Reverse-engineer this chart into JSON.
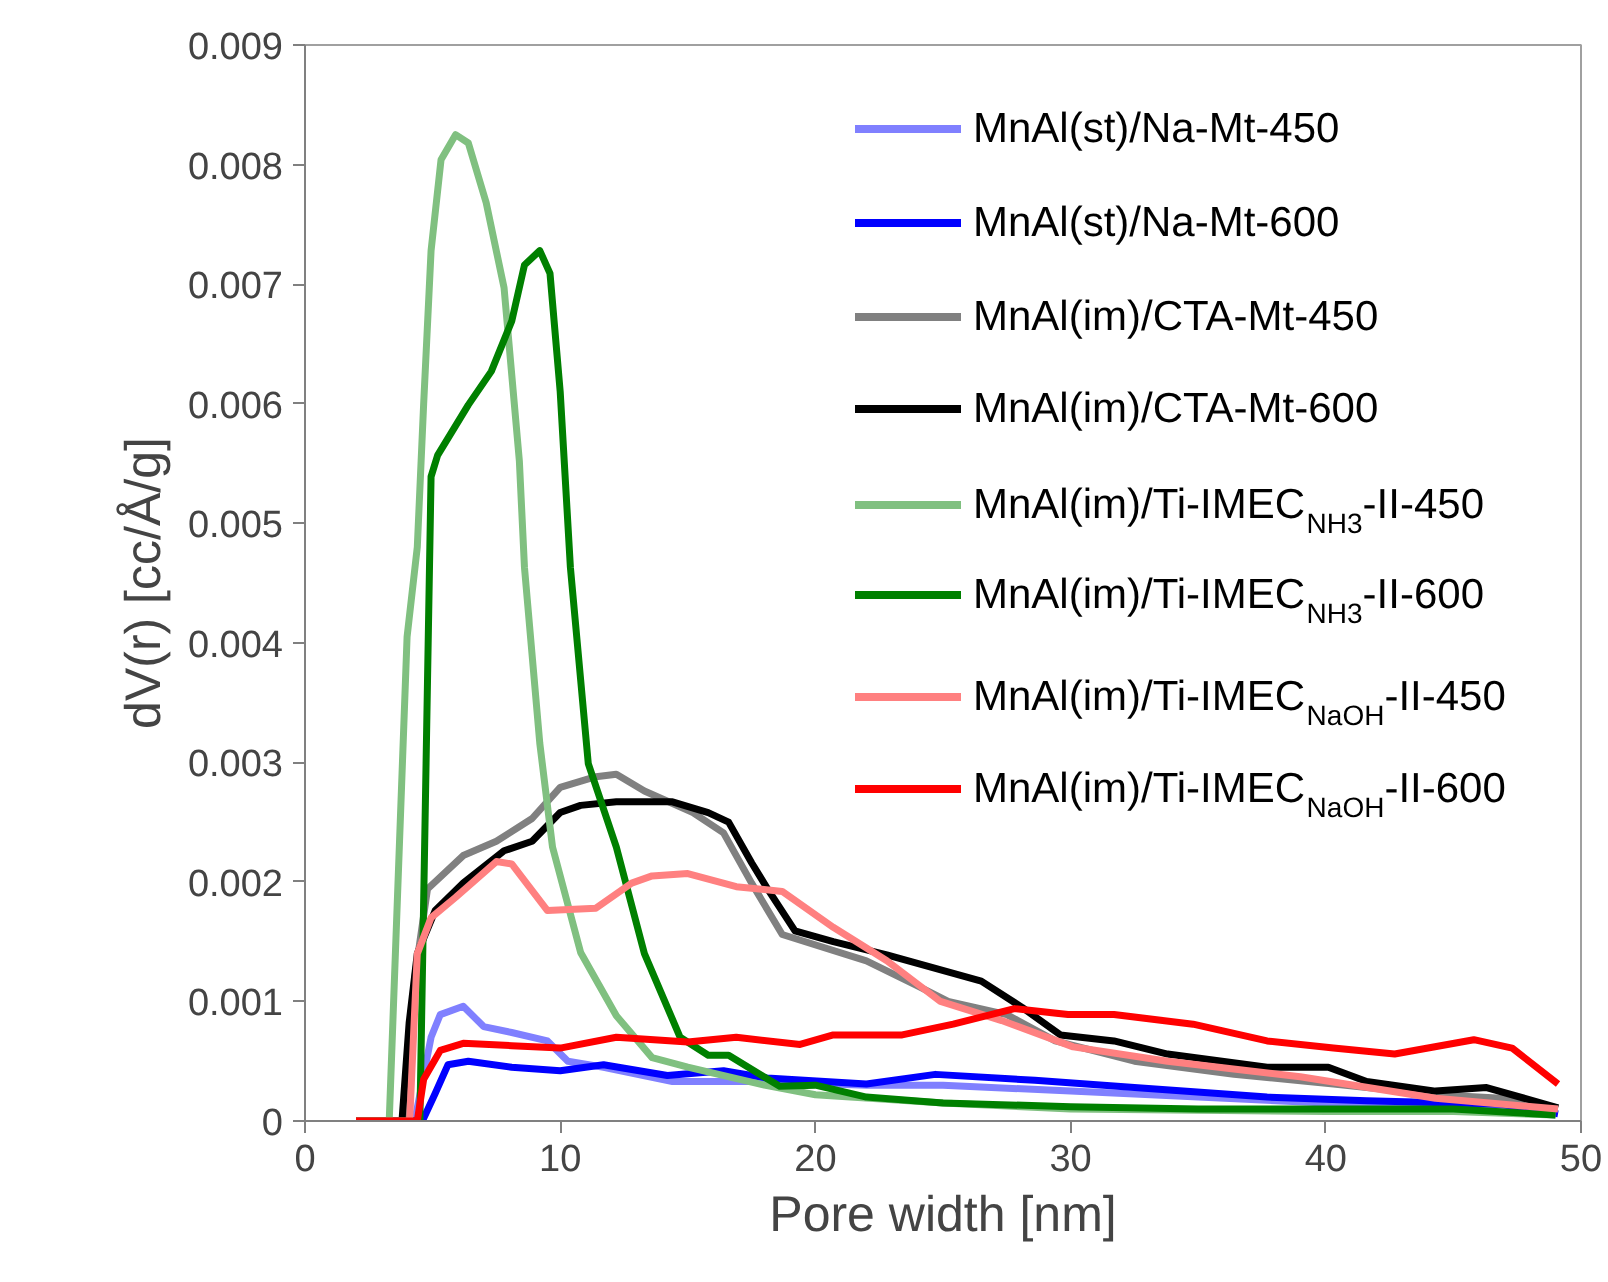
{
  "chart_data": {
    "type": "line",
    "xlabel": "Pore width [nm]",
    "ylabel": "dV(r) [cc/Å/g]",
    "xlim": [
      0,
      50
    ],
    "ylim": [
      0,
      0.009
    ],
    "xticks": [
      0,
      10,
      20,
      30,
      40,
      50
    ],
    "yticks": [
      0,
      0.001,
      0.002,
      0.003,
      0.004,
      0.005,
      0.006,
      0.007,
      0.008,
      0.009
    ],
    "grid": false,
    "legend": "top right",
    "marker": "none",
    "line_style": "solid",
    "series": [
      {
        "name": "MnAl(st)/Na-Mt-450",
        "color": "#8080ff",
        "x": [
          2,
          4.3,
          4.94,
          5.3,
          6.2,
          7.0,
          8.1,
          9.5,
          10.3,
          11.7,
          14.4,
          18,
          22,
          25,
          30,
          35,
          40,
          45,
          49
        ],
        "values": [
          0,
          0,
          0.0007,
          0.00089,
          0.00096,
          0.00079,
          0.00074,
          0.00067,
          0.0005,
          0.00045,
          0.00033,
          0.00033,
          0.0003,
          0.0003,
          0.00025,
          0.0002,
          0.00015,
          0.00012,
          5e-05
        ]
      },
      {
        "name": "MnAl(st)/Na-Mt-600",
        "color": "#0000ff",
        "x": [
          2,
          4.6,
          5.1,
          5.6,
          6.4,
          8.1,
          10,
          11.7,
          14.2,
          16.4,
          18.1,
          22,
          24.7,
          28.6,
          32.5,
          37.7,
          41.6,
          46.9,
          49.1
        ],
        "values": [
          0,
          0,
          0.00023,
          0.00047,
          0.0005,
          0.00045,
          0.00042,
          0.00047,
          0.00038,
          0.00042,
          0.00036,
          0.00031,
          0.00039,
          0.00034,
          0.00028,
          0.0002,
          0.00017,
          0.00014,
          6e-05
        ]
      },
      {
        "name": "MnAl(im)/CTA-Mt-450",
        "color": "#808080",
        "x": [
          2,
          3.9,
          4.3,
          4.8,
          6.2,
          7.5,
          8.9,
          10,
          11.4,
          12.2,
          13.3,
          15.2,
          16.4,
          17.5,
          18.7,
          22,
          24.1,
          25.2,
          27.5,
          29.4,
          32.5,
          36.4,
          40.3,
          44.3,
          46.9,
          49.1
        ],
        "values": [
          0,
          0,
          0.0012,
          0.00194,
          0.00222,
          0.00234,
          0.00253,
          0.00279,
          0.00288,
          0.0029,
          0.00276,
          0.00258,
          0.00241,
          0.00199,
          0.00156,
          0.00134,
          0.00112,
          0.001,
          0.00089,
          0.00067,
          0.0005,
          0.00039,
          0.00031,
          0.00022,
          0.00019,
          0.00011
        ]
      },
      {
        "name": "MnAl(im)/CTA-Mt-600",
        "color": "#000000",
        "x": [
          2,
          3.8,
          4.08,
          4.4,
          5.1,
          6.2,
          7.8,
          8.9,
          10,
          10.8,
          12.2,
          14.4,
          15.8,
          16.6,
          17.5,
          18.1,
          19.2,
          20.7,
          22.8,
          26.5,
          28.1,
          29.6,
          31.7,
          33.8,
          37.7,
          40.1,
          41.6,
          44.3,
          46.3,
          49.1
        ],
        "values": [
          0,
          0,
          0.00082,
          0.0014,
          0.00176,
          0.00199,
          0.00226,
          0.00234,
          0.00258,
          0.00264,
          0.00267,
          0.00267,
          0.00258,
          0.0025,
          0.00216,
          0.00195,
          0.00159,
          0.0015,
          0.00139,
          0.00117,
          0.00095,
          0.00072,
          0.00067,
          0.00056,
          0.00045,
          0.00045,
          0.00033,
          0.00025,
          0.00028,
          0.00011
        ]
      },
      {
        "name": "MnAl(im)/Ti-IMEC$_{NH3}$-II-450",
        "color": "#80c080",
        "x": [
          2,
          3.3,
          4.0,
          4.4,
          4.65,
          4.94,
          5.33,
          5.9,
          6.4,
          7.1,
          7.8,
          8.4,
          8.6,
          9.2,
          9.7,
          10.8,
          12.2,
          13.6,
          15,
          18,
          20,
          25,
          30,
          35,
          40,
          45,
          49
        ],
        "values": [
          0,
          0,
          0.00405,
          0.0048,
          0.006,
          0.00728,
          0.00804,
          0.00825,
          0.00818,
          0.00768,
          0.00697,
          0.00552,
          0.00463,
          0.00316,
          0.00229,
          0.00141,
          0.00088,
          0.00053,
          0.00045,
          0.0003,
          0.00022,
          0.00015,
          0.0001,
          9e-05,
          8e-05,
          8e-05,
          5e-05
        ]
      },
      {
        "name": "MnAl(im)/Ti-IMEC$_{NH3}$-II-600",
        "color": "#008000",
        "x": [
          2,
          4.5,
          4.94,
          5.2,
          6.4,
          7.3,
          8.1,
          8.6,
          9.2,
          9.6,
          10.0,
          10.4,
          11.1,
          12.2,
          13.3,
          14.7,
          15.8,
          16.6,
          18.6,
          20,
          22,
          25,
          30,
          35,
          40,
          45,
          49
        ],
        "values": [
          0,
          0,
          0.00539,
          0.00557,
          0.00599,
          0.00627,
          0.00669,
          0.00716,
          0.00728,
          0.00709,
          0.0061,
          0.00463,
          0.00299,
          0.00229,
          0.0014,
          0.0007,
          0.00055,
          0.00055,
          0.00029,
          0.0003,
          0.0002,
          0.00015,
          0.00012,
          0.0001,
          0.0001,
          0.0001,
          5e-05
        ]
      },
      {
        "name": "MnAl(im)/Ti-IMEC$_{NaOH}$-II-450",
        "color": "#ff8080",
        "x": [
          2,
          4.1,
          4.4,
          4.94,
          5.9,
          7.5,
          8.1,
          9.5,
          11.4,
          12.8,
          13.6,
          15,
          16.9,
          18.7,
          20.7,
          22.8,
          24.9,
          27.3,
          30.1,
          33.8,
          39,
          44.3,
          49.1
        ],
        "values": [
          0,
          0,
          0.0014,
          0.0017,
          0.00187,
          0.00217,
          0.00215,
          0.00176,
          0.00178,
          0.00199,
          0.00205,
          0.00207,
          0.00196,
          0.00192,
          0.00162,
          0.00134,
          0.001,
          0.00084,
          0.00062,
          0.0005,
          0.00037,
          0.00019,
          0.0001
        ]
      },
      {
        "name": "MnAl(im)/Ti-IMEC$_{NaOH}$-II-600",
        "color": "#ff0000",
        "x": [
          2,
          4.4,
          4.65,
          5.3,
          6.2,
          8.1,
          10,
          12.2,
          15,
          16.9,
          19.4,
          20.7,
          23.4,
          25.4,
          27.8,
          29.9,
          31.7,
          34.8,
          37.7,
          40.3,
          42.7,
          45.8,
          47.3,
          49.1
        ],
        "values": [
          0,
          0,
          0.00035,
          0.00059,
          0.00065,
          0.00063,
          0.00061,
          0.0007,
          0.00066,
          0.0007,
          0.00064,
          0.00072,
          0.00072,
          0.00081,
          0.00094,
          0.00089,
          0.00089,
          0.00081,
          0.00067,
          0.00061,
          0.00056,
          0.00068,
          0.00061,
          0.00031
        ]
      }
    ]
  }
}
